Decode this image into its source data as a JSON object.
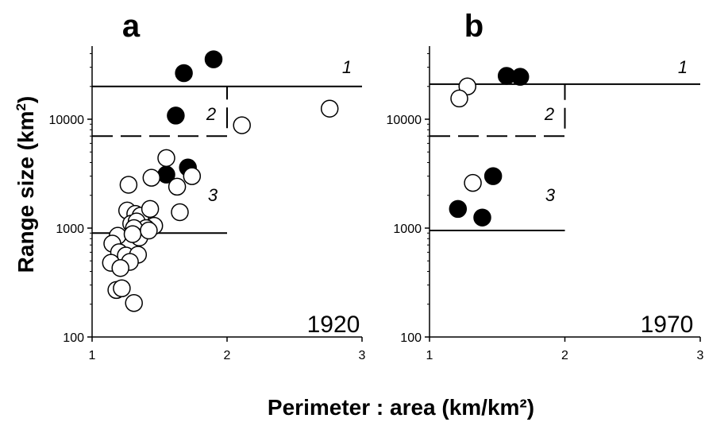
{
  "figure": {
    "ylabel": "Range size (km",
    "ylabel_sup": "2",
    "ylabel_end": ")",
    "xlabel": "Perimeter : area (km/km²)"
  },
  "chart_data": [
    {
      "type": "scatter",
      "panel": "a",
      "year": "1920",
      "x_ticks": [
        "1",
        "2",
        "3"
      ],
      "y_ticks": [
        "100",
        "1000",
        "10000"
      ],
      "xlim": [
        1,
        3
      ],
      "ylim": [
        100,
        50000
      ],
      "y_scale": "log",
      "region_labels": [
        "1",
        "2",
        "3"
      ],
      "reference_lines": [
        {
          "style": "solid",
          "y": 20000,
          "x_end": 3
        },
        {
          "style": "dashed",
          "y": 7000,
          "x_end": 2,
          "y_top": 20000
        },
        {
          "style": "solid",
          "y": 900,
          "x_end": 2
        }
      ],
      "series": [
        {
          "marker": "filled",
          "points": [
            [
              1.68,
              26500
            ],
            [
              1.9,
              35500
            ],
            [
              1.62,
              10800
            ],
            [
              1.55,
              3100
            ],
            [
              1.71,
              3600
            ]
          ]
        },
        {
          "marker": "open",
          "points": [
            [
              2.11,
              8800
            ],
            [
              2.76,
              12500
            ],
            [
              1.55,
              4400
            ],
            [
              1.44,
              2900
            ],
            [
              1.27,
              2500
            ],
            [
              1.63,
              2400
            ],
            [
              1.74,
              3000
            ],
            [
              1.26,
              1450
            ],
            [
              1.32,
              1350
            ],
            [
              1.36,
              1300
            ],
            [
              1.43,
              1500
            ],
            [
              1.65,
              1400
            ],
            [
              1.29,
              1100
            ],
            [
              1.33,
              1150
            ],
            [
              1.46,
              1050
            ],
            [
              1.4,
              1000
            ],
            [
              1.31,
              1000
            ],
            [
              1.19,
              850
            ],
            [
              1.35,
              820
            ],
            [
              1.15,
              720
            ],
            [
              1.3,
              880
            ],
            [
              1.42,
              950
            ],
            [
              1.2,
              600
            ],
            [
              1.25,
              560
            ],
            [
              1.34,
              570
            ],
            [
              1.14,
              480
            ],
            [
              1.28,
              490
            ],
            [
              1.21,
              430
            ],
            [
              1.18,
              270
            ],
            [
              1.22,
              280
            ],
            [
              1.31,
              205
            ]
          ]
        }
      ]
    },
    {
      "type": "scatter",
      "panel": "b",
      "year": "1970",
      "x_ticks": [
        "1",
        "2",
        "3"
      ],
      "y_ticks": [
        "100",
        "1000",
        "10000"
      ],
      "xlim": [
        1,
        3
      ],
      "ylim": [
        100,
        50000
      ],
      "y_scale": "log",
      "region_labels": [
        "1",
        "2",
        "3"
      ],
      "reference_lines": [
        {
          "style": "solid",
          "y": 21000,
          "x_end": 3
        },
        {
          "style": "dashed",
          "y": 7000,
          "x_end": 2,
          "y_top": 21000
        },
        {
          "style": "solid",
          "y": 950,
          "x_end": 2
        }
      ],
      "series": [
        {
          "marker": "filled",
          "points": [
            [
              1.57,
              25000
            ],
            [
              1.67,
              24500
            ],
            [
              1.47,
              3000
            ],
            [
              1.21,
              1500
            ],
            [
              1.39,
              1250
            ]
          ]
        },
        {
          "marker": "open",
          "points": [
            [
              1.28,
              20000
            ],
            [
              1.22,
              15500
            ],
            [
              1.32,
              2600
            ]
          ]
        }
      ]
    }
  ]
}
